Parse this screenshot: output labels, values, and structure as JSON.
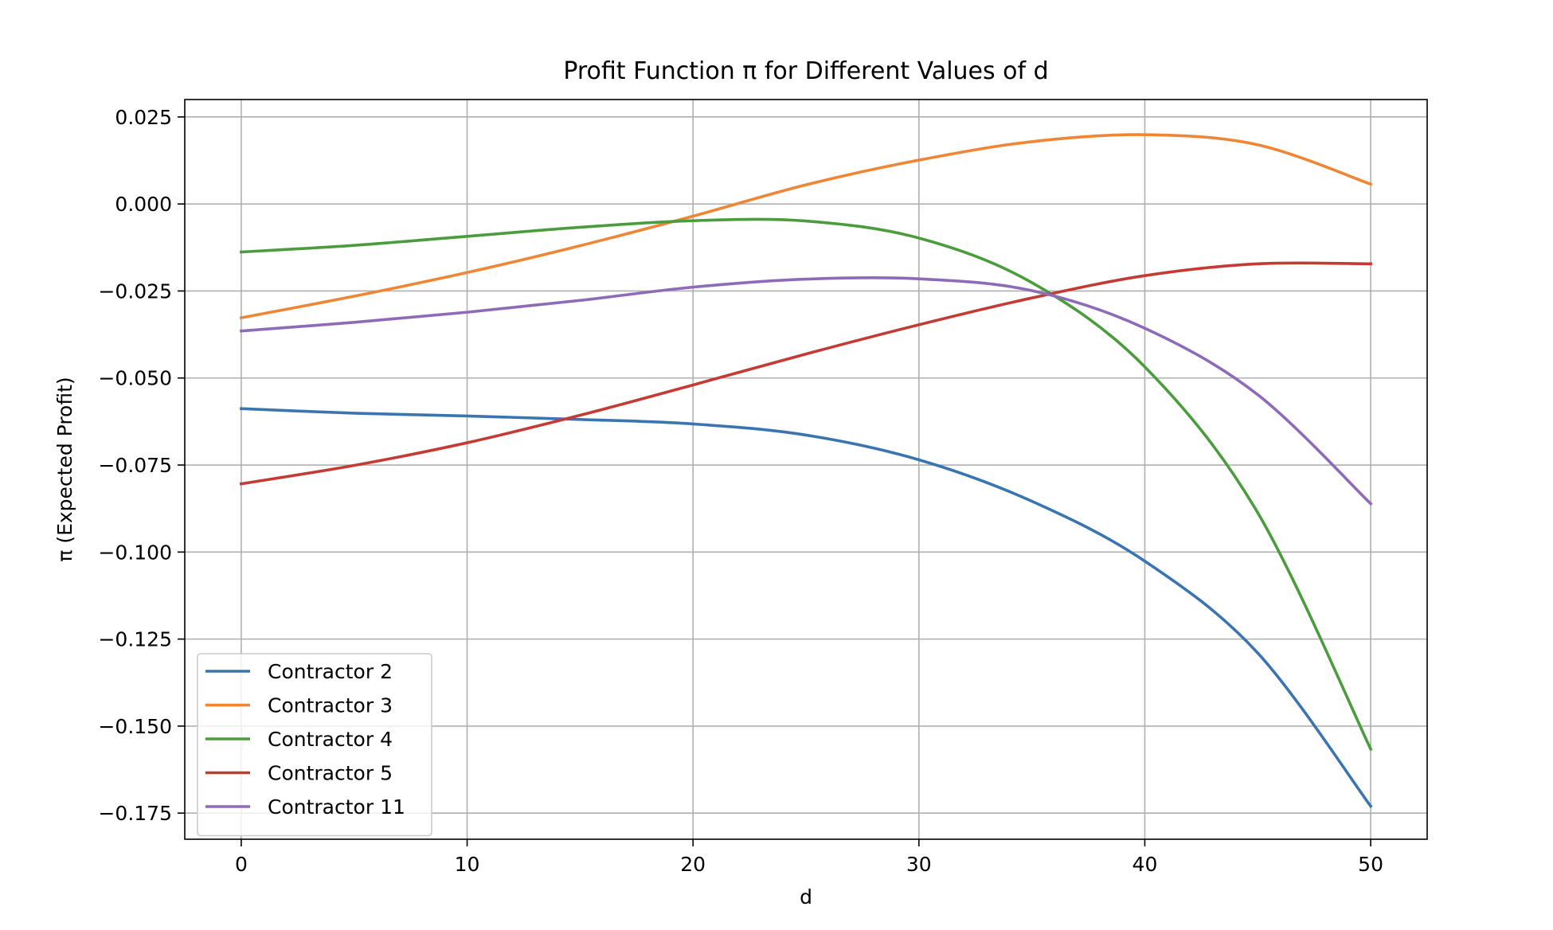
{
  "chart_data": {
    "type": "line",
    "title": "Profit Function π for Different Values of d",
    "xlabel": "d",
    "ylabel": "π (Expected Profit)",
    "xlim": [
      -2.5,
      52.5
    ],
    "ylim": [
      -0.1825,
      0.03
    ],
    "xticks": [
      0,
      10,
      20,
      30,
      40,
      50
    ],
    "xtick_labels": [
      "0",
      "10",
      "20",
      "30",
      "40",
      "50"
    ],
    "yticks": [
      0.025,
      0.0,
      -0.025,
      -0.05,
      -0.075,
      -0.1,
      -0.125,
      -0.15,
      -0.175
    ],
    "ytick_labels": [
      "0.025",
      "0.000",
      "−0.025",
      "−0.050",
      "−0.075",
      "−0.100",
      "−0.125",
      "−0.150",
      "−0.175"
    ],
    "grid": true,
    "legend_position": "lower-left",
    "x": [
      0,
      5,
      10,
      15,
      20,
      25,
      30,
      35,
      40,
      45,
      50
    ],
    "series": [
      {
        "name": "Contractor 2",
        "color": "#3a75b0",
        "values": [
          -0.0588,
          -0.0601,
          -0.0609,
          -0.0619,
          -0.0632,
          -0.0664,
          -0.0735,
          -0.0854,
          -0.1026,
          -0.129,
          -0.173
        ]
      },
      {
        "name": "Contractor 3",
        "color": "#ef8636",
        "values": [
          -0.0327,
          -0.0265,
          -0.0197,
          -0.012,
          -0.0035,
          0.0055,
          0.0126,
          0.0179,
          0.0199,
          0.017,
          0.0057
        ]
      },
      {
        "name": "Contractor 4",
        "color": "#4a9c3c",
        "values": [
          -0.0138,
          -0.0119,
          -0.0093,
          -0.0067,
          -0.0048,
          -0.0049,
          -0.0098,
          -0.0226,
          -0.0468,
          -0.0887,
          -0.1566
        ]
      },
      {
        "name": "Contractor 5",
        "color": "#c43a34",
        "values": [
          -0.0804,
          -0.0751,
          -0.0686,
          -0.0607,
          -0.052,
          -0.0431,
          -0.0347,
          -0.027,
          -0.0206,
          -0.0172,
          -0.0172
        ]
      },
      {
        "name": "Contractor 11",
        "color": "#8d6bb8",
        "values": [
          -0.0365,
          -0.034,
          -0.0311,
          -0.0277,
          -0.0239,
          -0.0216,
          -0.0215,
          -0.0249,
          -0.0357,
          -0.0548,
          -0.0861
        ]
      }
    ]
  }
}
